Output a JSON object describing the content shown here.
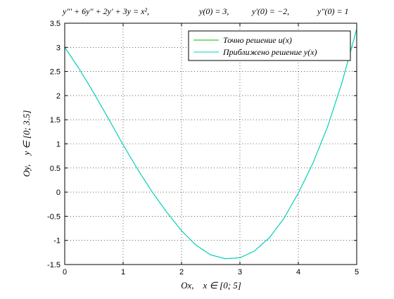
{
  "chart_data": {
    "type": "line",
    "title": "y''' + 6y'' + 2y' + 3y = x², y(0) = 3, y'(0) = −2, y''(0) = 1",
    "title_parts": [
      "y''' + 6y'' + 2y' + 3y = x²,",
      "y(0) = 3,",
      "y'(0) = −2,",
      "y''(0) = 1"
    ],
    "xlabel": "Ox,    x ∈ [0; 5]",
    "ylabel": "Oy,    y ∈ [0; 3.5]",
    "xlim": [
      0,
      5
    ],
    "ylim": [
      -1.5,
      3.5
    ],
    "xticks": [
      0,
      1,
      2,
      3,
      4,
      5
    ],
    "yticks": [
      -1.5,
      -1,
      -0.5,
      0,
      0.5,
      1,
      1.5,
      2,
      2.5,
      3,
      3.5
    ],
    "xtick_labels": [
      "0",
      "1",
      "2",
      "3",
      "4",
      "5"
    ],
    "ytick_labels": [
      "-1.5",
      "-1",
      "-0.5",
      "0",
      "0.5",
      "1",
      "1.5",
      "2",
      "2.5",
      "3",
      "3.5"
    ],
    "grid": true,
    "legend_position": "top-right",
    "series": [
      {
        "name": "Точно решение u(x)",
        "color": "#00c000",
        "x": [
          0,
          0.25,
          0.5,
          0.75,
          1.0,
          1.25,
          1.5,
          1.75,
          2.0,
          2.25,
          2.5,
          2.75,
          3.0,
          3.25,
          3.5,
          3.75,
          4.0,
          4.25,
          4.5,
          4.75,
          5.0
        ],
        "y": [
          3.0,
          2.55,
          2.05,
          1.52,
          0.98,
          0.47,
          0.0,
          -0.42,
          -0.8,
          -1.1,
          -1.3,
          -1.38,
          -1.36,
          -1.22,
          -0.95,
          -0.55,
          -0.02,
          0.6,
          1.35,
          2.28,
          3.38
        ]
      },
      {
        "name": "Приближено решение y(x)",
        "color": "#00d0d0",
        "x": [
          0,
          0.25,
          0.5,
          0.75,
          1.0,
          1.25,
          1.5,
          1.75,
          2.0,
          2.25,
          2.5,
          2.75,
          3.0,
          3.25,
          3.5,
          3.75,
          4.0,
          4.25,
          4.5,
          4.75,
          5.0
        ],
        "y": [
          3.0,
          2.55,
          2.05,
          1.52,
          0.98,
          0.47,
          0.0,
          -0.42,
          -0.8,
          -1.1,
          -1.3,
          -1.38,
          -1.36,
          -1.22,
          -0.95,
          -0.55,
          -0.02,
          0.6,
          1.35,
          2.28,
          3.38
        ]
      }
    ]
  }
}
